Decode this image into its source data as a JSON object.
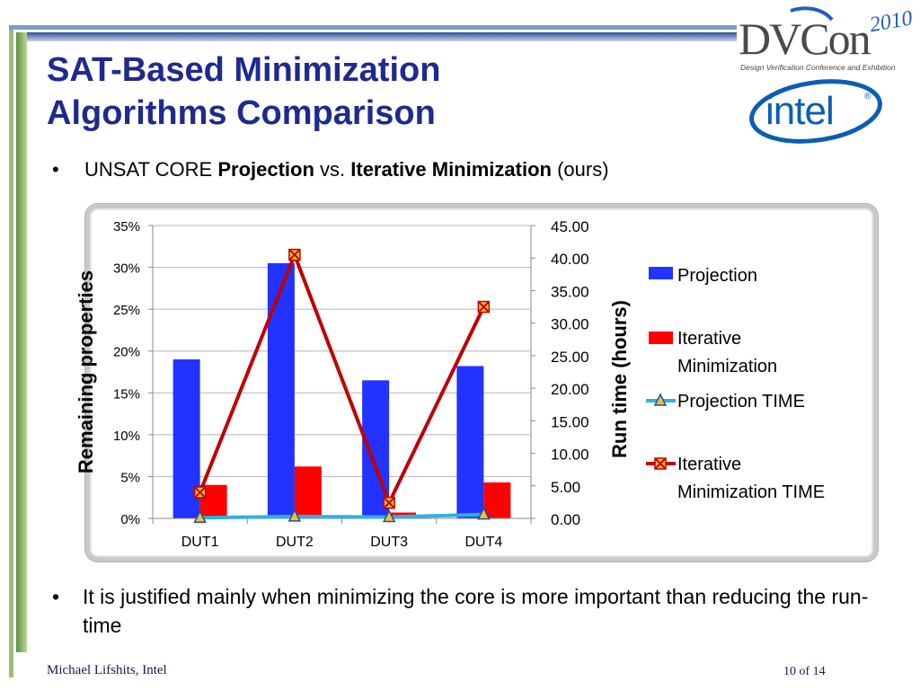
{
  "slide": {
    "title_line1": "SAT-Based Minimization",
    "title_line2": "Algorithms Comparison",
    "bullet1": {
      "marker": "•",
      "pre": "UNSAT CORE ",
      "bold1": "Projection",
      "mid": " vs. ",
      "bold2": "Iterative Minimization",
      "post": " (ours)"
    },
    "bullet2": {
      "marker": "•",
      "text": "It is justified mainly when minimizing the core is more important than reducing the run-time"
    },
    "footer_author": "Michael Lifshits, Intel",
    "footer_page": "10 of 14"
  },
  "logos": {
    "dvcon_main": "DVCon",
    "dvcon_year": "2010",
    "dvcon_tagline": "Design Verification Conference and Exhibition",
    "intel": "intel"
  },
  "colors": {
    "title": "#1f2a8f",
    "projection": "#2233ff",
    "iterative": "#ff0000",
    "projection_time": "#2fb0e8",
    "iterative_time": "#c00000",
    "marker_fill": "#f2c12e"
  },
  "chart_data": {
    "type": "bar",
    "categories": [
      "DUT1",
      "DUT2",
      "DUT3",
      "DUT4"
    ],
    "ylabel": "Remaining properties",
    "y2label": "Run time (hours)",
    "ylim": [
      0,
      0.35
    ],
    "y2lim": [
      0,
      45
    ],
    "yticks": [
      "0%",
      "5%",
      "10%",
      "15%",
      "20%",
      "25%",
      "30%",
      "35%"
    ],
    "y2ticks": [
      "0.00",
      "5.00",
      "10.00",
      "15.00",
      "20.00",
      "25.00",
      "30.00",
      "35.00",
      "40.00",
      "45.00"
    ],
    "series": [
      {
        "name": "Projection",
        "type": "bar",
        "axis": "left",
        "values": [
          0.19,
          0.305,
          0.165,
          0.182
        ]
      },
      {
        "name": "Iterative Minimization",
        "type": "bar",
        "axis": "left",
        "values": [
          0.04,
          0.062,
          0.007,
          0.043
        ]
      },
      {
        "name": "Projection TIME",
        "type": "line",
        "axis": "right",
        "values": [
          0.1,
          0.3,
          0.2,
          0.6
        ]
      },
      {
        "name": "Iterative Minimization TIME",
        "type": "line",
        "axis": "right",
        "values": [
          4.0,
          40.5,
          2.4,
          32.5
        ]
      }
    ],
    "legend_position": "right",
    "legend": [
      {
        "line1": "Projection",
        "line2": ""
      },
      {
        "line1": "Iterative",
        "line2": "Minimization"
      },
      {
        "line1": "Projection TIME",
        "line2": ""
      },
      {
        "line1": "Iterative",
        "line2": "Minimization TIME"
      }
    ]
  }
}
